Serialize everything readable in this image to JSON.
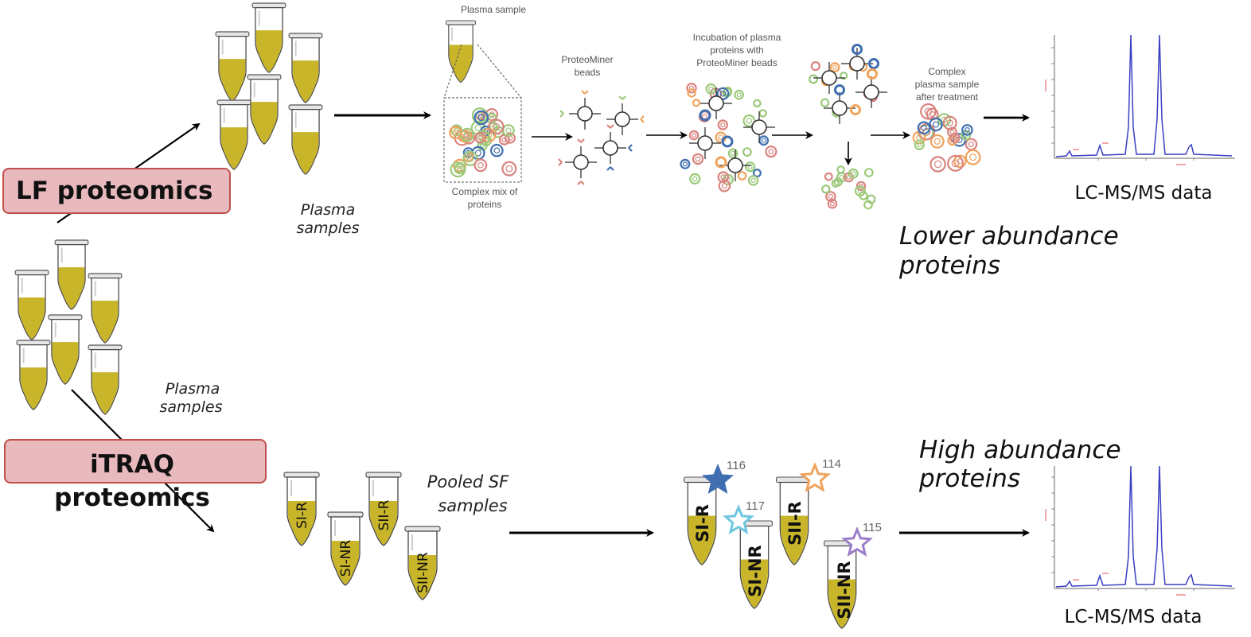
{
  "labels": {
    "lf_box": "LF proteomics",
    "itraq_line1": "iTRAQ",
    "itraq_line2": "proteomics",
    "plasma_samples_top_1": "Plasma",
    "plasma_samples_top_2": "samples",
    "plasma_samples_left_1": "Plasma",
    "plasma_samples_left_2": "samples",
    "plasma_sample": "Plasma sample",
    "complex_mix_1": "Complex mix of",
    "complex_mix_2": "proteins",
    "proteominer_1": "ProteoMiner",
    "proteominer_2": "beads",
    "incubation_1": "Incubation of plasma",
    "incubation_2": "proteins with",
    "incubation_3": "ProteoMiner beads",
    "complex_after_1": "Complex",
    "complex_after_2": "plasma sample",
    "complex_after_3": "after treatment",
    "lcms_top": "LC-MS/MS data",
    "lcms_bottom": "LC-MS/MS data",
    "lower_abundance_1": "Lower abundance",
    "lower_abundance_2": "proteins",
    "high_abundance_1": "High abundance",
    "high_abundance_2": "proteins",
    "pooled_1": "Pooled SF",
    "pooled_2": "samples"
  },
  "tube_labels": {
    "si_r": "SI-R",
    "si_nr": "SI-NR",
    "sii_r": "SII-R",
    "sii_nr": "SII-NR"
  },
  "itraq_tags": {
    "t116": "116",
    "t117": "117",
    "t114": "114",
    "t115": "115"
  },
  "colors": {
    "box_fill": "#e8b9bd",
    "box_stroke": "#c0504d",
    "liquid": "#c8b52a",
    "bead_green": "#9bc97a",
    "bead_red": "#d9837f",
    "bead_orange": "#f0a35c",
    "bead_blue": "#3f6fb0",
    "spectrum": "#3a3fc2",
    "star_116": "#3f6fb0",
    "star_117": "#6ec6e0",
    "star_114": "#f0a35c",
    "star_115": "#9b7fc8"
  }
}
